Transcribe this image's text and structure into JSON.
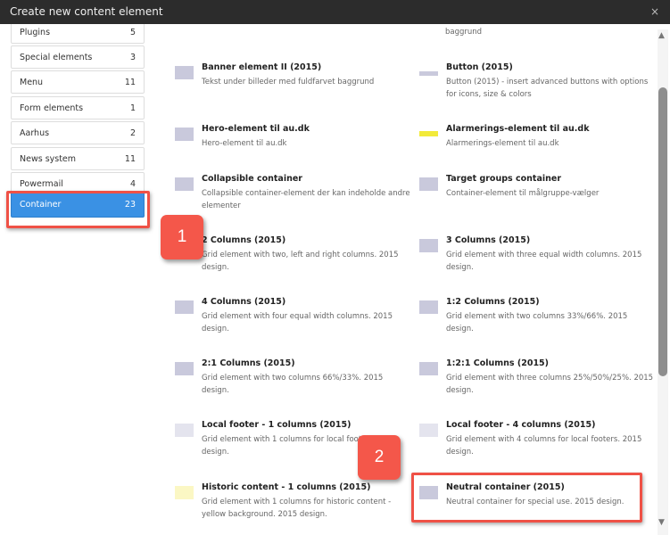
{
  "dialog": {
    "title": "Create new content element",
    "close_icon": "×"
  },
  "sidebar": {
    "items": [
      {
        "label": "Plugins",
        "count": "5"
      },
      {
        "label": "Special elements",
        "count": "3"
      },
      {
        "label": "Menu",
        "count": "11"
      },
      {
        "label": "Form elements",
        "count": "1"
      },
      {
        "label": "Aarhus",
        "count": "2"
      },
      {
        "label": "News system",
        "count": "11"
      },
      {
        "label": "Powermail",
        "count": "4"
      },
      {
        "label": "Container",
        "count": "23",
        "active": true
      }
    ]
  },
  "partial_top_text": "baggrund",
  "elements": [
    {
      "title": "Banner element II (2015)",
      "desc": "Tekst under billeder med fuldfarvet baggrund",
      "icon": "banner"
    },
    {
      "title": "Button (2015)",
      "desc": "Button (2015) - insert advanced buttons with options for icons, size & colors",
      "icon": "button"
    },
    {
      "title": "Hero-element til au.dk",
      "desc": "Hero-element til au.dk",
      "icon": "hero"
    },
    {
      "title": "Alarmerings-element til au.dk",
      "desc": "Alarmerings-element til au.dk",
      "icon": "alarm"
    },
    {
      "title": "Collapsible container",
      "desc": "Collapsible container-element der kan indeholde andre elementer",
      "icon": "collapsible"
    },
    {
      "title": "Target groups container",
      "desc": "Container-element til målgruppe-vælger",
      "icon": "target-groups"
    },
    {
      "title": "2 Columns (2015)",
      "desc": "Grid element with two, left and right columns. 2015 design.",
      "icon": "columns"
    },
    {
      "title": "3 Columns (2015)",
      "desc": "Grid element with three equal width columns. 2015 design.",
      "icon": "columns"
    },
    {
      "title": "4 Columns (2015)",
      "desc": "Grid element with four equal width columns. 2015 design.",
      "icon": "columns"
    },
    {
      "title": "1:2 Columns (2015)",
      "desc": "Grid element with two columns 33%/66%. 2015 design.",
      "icon": "columns"
    },
    {
      "title": "2:1 Columns (2015)",
      "desc": "Grid element with two columns 66%/33%. 2015 design.",
      "icon": "columns"
    },
    {
      "title": "1:2:1 Columns (2015)",
      "desc": "Grid element with three columns 25%/50%/25%. 2015 design.",
      "icon": "columns"
    },
    {
      "title": "Local footer - 1 columns (2015)",
      "desc": "Grid element with 1 columns for local footers. 2015 design.",
      "icon": "footer"
    },
    {
      "title": "Local footer - 4 columns (2015)",
      "desc": "Grid element with 4 columns for local footers. 2015 design.",
      "icon": "footer"
    },
    {
      "title": "Historic content - 1 columns (2015)",
      "desc": "Grid element with 1 columns for historic content - yellow background. 2015 design.",
      "icon": "historic"
    },
    {
      "title": "Neutral container (2015)",
      "desc": "Neutral container for special use. 2015 design.",
      "icon": "neutral"
    }
  ],
  "annotations": {
    "callout1": "1",
    "callout2": "2",
    "highlight_color": "#ef5146"
  },
  "colors": {
    "active": "#3a91e4",
    "header": "#2c2c2c"
  }
}
